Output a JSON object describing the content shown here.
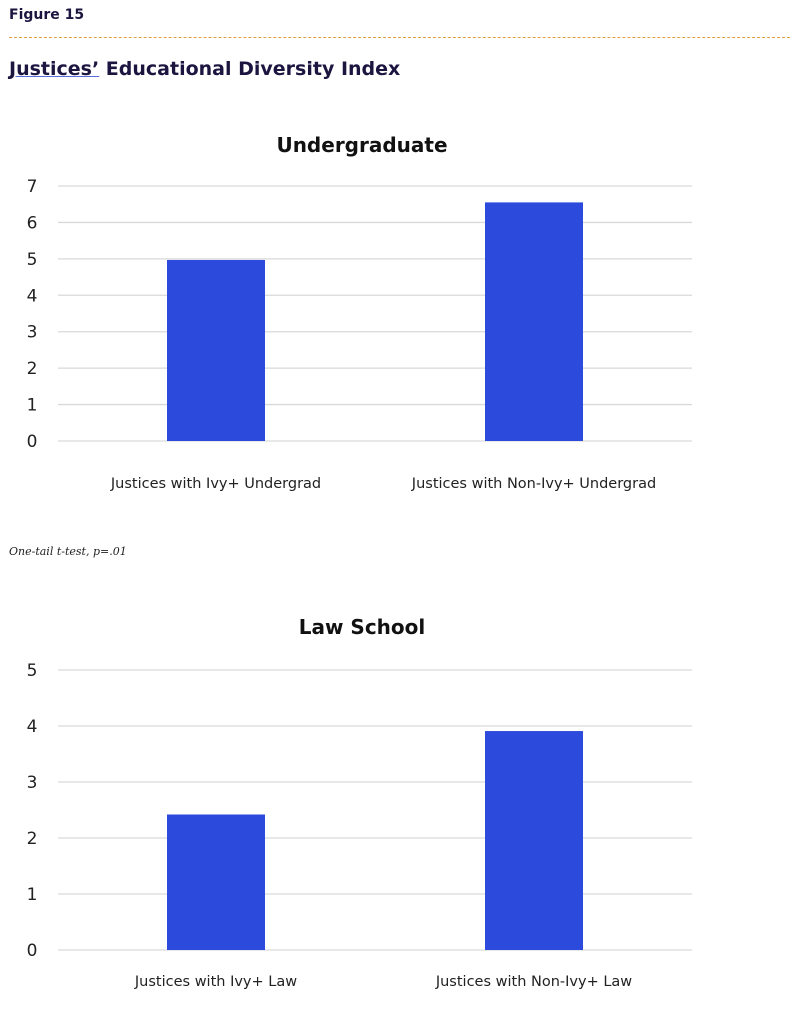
{
  "header": {
    "figure_label": "Figure 15",
    "title_underlined": "Justices’",
    "title_rest": " Educational Diversity Index"
  },
  "note": "One-tail t-test, p=.01",
  "colors": {
    "bar": "#2c4bdd",
    "grid": "#d9d9d9",
    "rule": "#e0a040",
    "title": "#1b1540"
  },
  "chart_data": [
    {
      "type": "bar",
      "title": "Undergraduate",
      "categories": [
        "Justices with Ivy+ Undergrad",
        "Justices with Non-Ivy+ Undergrad"
      ],
      "values": [
        4.97,
        6.55
      ],
      "ylim": [
        0,
        7
      ],
      "yticks": [
        0,
        1,
        2,
        3,
        4,
        5,
        6,
        7
      ],
      "xlabel": "",
      "ylabel": "",
      "grid": true
    },
    {
      "type": "bar",
      "title": "Law School",
      "categories": [
        "Justices with Ivy+ Law",
        "Justices with Non-Ivy+ Law"
      ],
      "values": [
        2.42,
        3.91
      ],
      "ylim": [
        0,
        5
      ],
      "yticks": [
        0,
        1,
        2,
        3,
        4,
        5
      ],
      "xlabel": "",
      "ylabel": "",
      "grid": true
    }
  ]
}
